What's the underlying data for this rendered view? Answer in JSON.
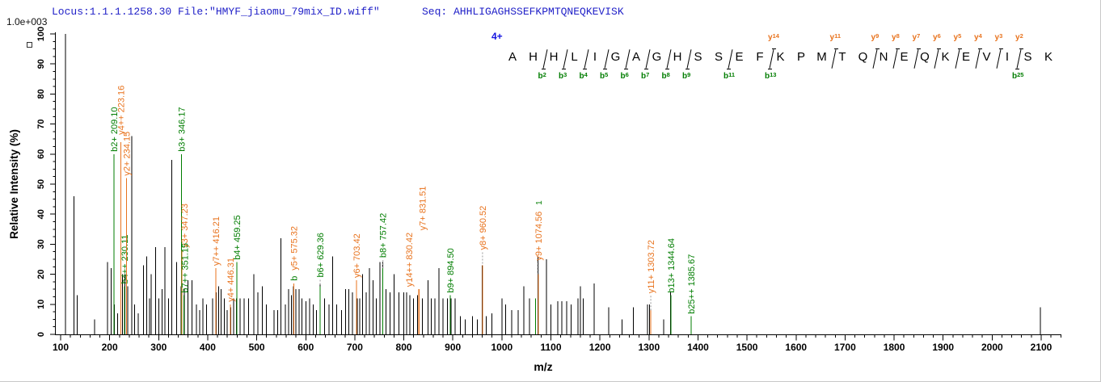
{
  "header": {
    "locus_file": "Locus:1.1.1.1258.30 File:\"HMYF_jiaomu_79mix_ID.wiff\"",
    "seq_label": "Seq: AHHLIGAGHSSEFKPMTQNEQKEVISK",
    "scale_label": "1.0e+003"
  },
  "colors": {
    "header_blue": "#2121c8",
    "charge_blue": "#1414e0",
    "b_ion_green": "#007d00",
    "y_ion_orange": "#e8731e",
    "peak_black": "#000000",
    "leader_gray": "#9a9a9a"
  },
  "sequence": {
    "charge": "4+",
    "residues": [
      "A",
      "H",
      "H",
      "L",
      "I",
      "G",
      "A",
      "G",
      "H",
      "S",
      "S",
      "E",
      "F",
      "K",
      "P",
      "M",
      "T",
      "Q",
      "N",
      "E",
      "Q",
      "K",
      "E",
      "V",
      "I",
      "S",
      "K"
    ],
    "cleavages": [
      {
        "after": 2,
        "b": "b2"
      },
      {
        "after": 3,
        "b": "b3"
      },
      {
        "after": 4,
        "b": "b4"
      },
      {
        "after": 5,
        "b": "b5"
      },
      {
        "after": 6,
        "b": "b6"
      },
      {
        "after": 7,
        "b": "b7"
      },
      {
        "after": 8,
        "b": "b8"
      },
      {
        "after": 9,
        "b": "b9"
      },
      {
        "after": 11,
        "b": "b11"
      },
      {
        "after": 13,
        "b": "b13",
        "y": "y14"
      },
      {
        "after": 16,
        "y": "y11"
      },
      {
        "after": 18,
        "y": "y9"
      },
      {
        "after": 19,
        "y": "y8"
      },
      {
        "after": 20,
        "y": "y7"
      },
      {
        "after": 21,
        "y": "y6"
      },
      {
        "after": 22,
        "y": "y5"
      },
      {
        "after": 23,
        "y": "y4"
      },
      {
        "after": 24,
        "y": "y3"
      },
      {
        "after": 25,
        "b": "b25",
        "y": "y2"
      }
    ]
  },
  "axes": {
    "x_label": "m/z",
    "y_label": "Relative  Intensity (%)",
    "x_min": 100,
    "x_max": 2100,
    "x_axis_end": 2140,
    "x_major": 100,
    "x_minor": 20,
    "y_min": 0,
    "y_max": 100,
    "y_major": 10,
    "y_minor": 2.5
  },
  "chart_data": {
    "type": "bar",
    "subtype": "ms2-spectrum",
    "title": "",
    "xlabel": "m/z",
    "ylabel": "Relative  Intensity (%)",
    "xlim": [
      100,
      2140
    ],
    "ylim": [
      0,
      100
    ],
    "intensity_scale": "1.0e+003",
    "annotated_ions": [
      {
        "mz": 209.1,
        "ion": "b2+",
        "label": "b2+ 209.10",
        "c": "b",
        "pct": 60
      },
      {
        "mz": 223.16,
        "ion": "y4++",
        "label": "y4++ 223.16",
        "c": "y",
        "pct": 64,
        "dy": 6
      },
      {
        "mz": 230.11,
        "ion": "b4++",
        "label": "b4++ 230.11",
        "c": "b",
        "pct": 16
      },
      {
        "mz": 234.15,
        "ion": "y2+",
        "label": "y2+ 234.15",
        "c": "y",
        "pct": 52
      },
      {
        "mz": 346.17,
        "ion": "b3+",
        "label": "b3+ 346.17",
        "c": "b",
        "pct": 60
      },
      {
        "mz": 347.23,
        "ion": "y3+",
        "label": "y3+ 347.23",
        "c": "y",
        "pct": 28,
        "dx": 7
      },
      {
        "mz": 351.15,
        "ion": "b7++",
        "label": "b7++ 351.15",
        "c": "b",
        "pct": 13,
        "dx": 5
      },
      {
        "mz": 416.21,
        "ion": "y7++",
        "label": "y7++ 416.21",
        "c": "y",
        "pct": 22
      },
      {
        "mz": 446.31,
        "ion": "y4+",
        "label": "y4+ 446.31",
        "c": "y",
        "pct": 10
      },
      {
        "mz": 459.25,
        "ion": "b4+",
        "label": "b4+ 459.25",
        "c": "b",
        "pct": 24
      },
      {
        "mz": 575.32,
        "ion": "y5+",
        "label": "y5+ 575.32",
        "c": "y",
        "pct": 17,
        "prefix": {
          "t": "b",
          "c": "b"
        }
      },
      {
        "mz": 629.36,
        "ion": "b6+",
        "label": "b6+ 629.36",
        "c": "b",
        "pct": 16,
        "leader": 8
      },
      {
        "mz": 703.42,
        "ion": "y6+",
        "label": "y6+ 703.42",
        "c": "y",
        "pct": 18
      },
      {
        "mz": 757.42,
        "ion": "b8+",
        "label": "b8+ 757.42",
        "c": "b",
        "pct": 22,
        "leader": 10
      },
      {
        "mz": 830.42,
        "ion": "y14++",
        "label": "y14++ 830.42",
        "c": "y",
        "pct": 15,
        "dx": -8
      },
      {
        "mz": 831.51,
        "ion": "y7+",
        "label": "y7+ 831.51",
        "c": "y",
        "pct": 15,
        "dx": 8,
        "dy": 70
      },
      {
        "mz": 894.5,
        "ion": "b9+",
        "label": "b9+ 894.50",
        "c": "b",
        "pct": 13
      },
      {
        "mz": 960.52,
        "ion": "y8+",
        "label": "y8+ 960.52",
        "c": "y",
        "pct": 23,
        "leader": 16
      },
      {
        "mz": 1074.56,
        "ion": "y9+",
        "label": "y9+ 1074.56",
        "c": "y",
        "pct": 20,
        "leader": 14,
        "suffix": {
          "t": "1",
          "c": "b"
        }
      },
      {
        "mz": 1303.72,
        "ion": "y11+",
        "label": "y11+ 1303.72",
        "c": "y",
        "pct": 8,
        "leader": 18
      },
      {
        "mz": 1344.64,
        "ion": "b13+",
        "label": "b13+ 1344.64",
        "c": "b",
        "pct": 13
      },
      {
        "mz": 1385.67,
        "ion": "b25++",
        "label": "b25++ 1385.67",
        "c": "b",
        "pct": 6
      }
    ],
    "peaks": [
      [
        110,
        100
      ],
      [
        127,
        46
      ],
      [
        134,
        13
      ],
      [
        169,
        5
      ],
      [
        196,
        24
      ],
      [
        203,
        22
      ],
      [
        210,
        10
      ],
      [
        216,
        7
      ],
      [
        226,
        20
      ],
      [
        231,
        20
      ],
      [
        237,
        16
      ],
      [
        245,
        66
      ],
      [
        251,
        10
      ],
      [
        258,
        7
      ],
      [
        269,
        23
      ],
      [
        276,
        26
      ],
      [
        281,
        12
      ],
      [
        285,
        20
      ],
      [
        294,
        29
      ],
      [
        300,
        12
      ],
      [
        307,
        15
      ],
      [
        313,
        29
      ],
      [
        320,
        12
      ],
      [
        327,
        58
      ],
      [
        337,
        24
      ],
      [
        346,
        16
      ],
      [
        352,
        15
      ],
      [
        360,
        18
      ],
      [
        368,
        18
      ],
      [
        377,
        10
      ],
      [
        384,
        8
      ],
      [
        390,
        12
      ],
      [
        398,
        10
      ],
      [
        410,
        12
      ],
      [
        417,
        14
      ],
      [
        422,
        16
      ],
      [
        427,
        15
      ],
      [
        434,
        12
      ],
      [
        440,
        8
      ],
      [
        447,
        9
      ],
      [
        453,
        12
      ],
      [
        459,
        12
      ],
      [
        466,
        12
      ],
      [
        474,
        12
      ],
      [
        483,
        12
      ],
      [
        494,
        20
      ],
      [
        502,
        14
      ],
      [
        511,
        16
      ],
      [
        520,
        10
      ],
      [
        535,
        8
      ],
      [
        543,
        8
      ],
      [
        549,
        32
      ],
      [
        558,
        10
      ],
      [
        565,
        15
      ],
      [
        571,
        13
      ],
      [
        575,
        16
      ],
      [
        580,
        15
      ],
      [
        586,
        15
      ],
      [
        592,
        12
      ],
      [
        600,
        11
      ],
      [
        608,
        12
      ],
      [
        615,
        10
      ],
      [
        622,
        8
      ],
      [
        629,
        17
      ],
      [
        638,
        12
      ],
      [
        647,
        10
      ],
      [
        655,
        26
      ],
      [
        663,
        10
      ],
      [
        673,
        8
      ],
      [
        681,
        15
      ],
      [
        688,
        15
      ],
      [
        695,
        14
      ],
      [
        705,
        12
      ],
      [
        710,
        12
      ],
      [
        716,
        20
      ],
      [
        723,
        14
      ],
      [
        730,
        22
      ],
      [
        737,
        18
      ],
      [
        744,
        12
      ],
      [
        751,
        24
      ],
      [
        757,
        24
      ],
      [
        764,
        15
      ],
      [
        772,
        14
      ],
      [
        780,
        20
      ],
      [
        790,
        14
      ],
      [
        800,
        14
      ],
      [
        806,
        14
      ],
      [
        812,
        13
      ],
      [
        820,
        12
      ],
      [
        828,
        13
      ],
      [
        838,
        12
      ],
      [
        849,
        18
      ],
      [
        856,
        12
      ],
      [
        863,
        12
      ],
      [
        872,
        22
      ],
      [
        880,
        12
      ],
      [
        889,
        12
      ],
      [
        896,
        12
      ],
      [
        905,
        12
      ],
      [
        915,
        6
      ],
      [
        925,
        5
      ],
      [
        940,
        6
      ],
      [
        950,
        5
      ],
      [
        960,
        23
      ],
      [
        968,
        6
      ],
      [
        980,
        7
      ],
      [
        1000,
        12
      ],
      [
        1008,
        10
      ],
      [
        1020,
        8
      ],
      [
        1033,
        8
      ],
      [
        1045,
        16
      ],
      [
        1056,
        12
      ],
      [
        1069,
        12,
        "b"
      ],
      [
        1074,
        26
      ],
      [
        1091,
        25
      ],
      [
        1100,
        10
      ],
      [
        1114,
        11
      ],
      [
        1122,
        11
      ],
      [
        1132,
        11
      ],
      [
        1141,
        10
      ],
      [
        1155,
        12
      ],
      [
        1160,
        16
      ],
      [
        1166,
        12
      ],
      [
        1188,
        17
      ],
      [
        1218,
        9
      ],
      [
        1245,
        5
      ],
      [
        1268,
        9
      ],
      [
        1297,
        10
      ],
      [
        1301,
        10
      ],
      [
        1330,
        5
      ],
      [
        1344,
        14
      ],
      [
        2098,
        9
      ]
    ],
    "x_tick_labels": [
      100,
      200,
      300,
      400,
      500,
      600,
      700,
      800,
      900,
      1000,
      1100,
      1200,
      1300,
      1400,
      1500,
      1600,
      1700,
      1800,
      1900,
      2000,
      2100
    ],
    "y_tick_labels": [
      0,
      10,
      20,
      30,
      40,
      50,
      60,
      70,
      80,
      90,
      100
    ]
  }
}
